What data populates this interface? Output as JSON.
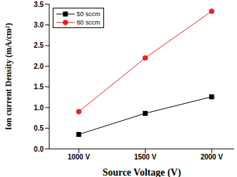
{
  "chart_data": {
    "type": "line",
    "xlabel": "Source Voltage (V)",
    "ylabel": "Ion current Density (mA/cm²)",
    "categories": [
      "1000 V",
      "1500 V",
      "2000 V"
    ],
    "series": [
      {
        "name": "50 sccm",
        "color": "#000000",
        "marker": "square",
        "values": [
          0.35,
          0.86,
          1.26
        ]
      },
      {
        "name": "80 sccm",
        "color": "#e8211c",
        "marker": "circle",
        "values": [
          0.9,
          2.2,
          3.33
        ]
      }
    ],
    "ylim": [
      0,
      3.5
    ],
    "yticks": [
      {
        "value": 0,
        "label": "0.0"
      },
      0.5,
      {
        "value": 1,
        "label": "1.0"
      },
      1.5,
      {
        "value": 2,
        "label": "2.0"
      },
      2.5,
      {
        "value": 3,
        "label": "3.0"
      },
      3.5
    ],
    "legend": "upper left",
    "grid": false
  }
}
